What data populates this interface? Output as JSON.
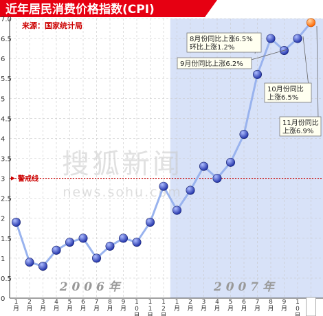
{
  "header": {
    "title": "近年居民消费价格指数(CPI)",
    "source": "来源：国家统计局",
    "title_bg": "#e60012",
    "title_color": "#ffffff",
    "source_color": "#cc0000"
  },
  "watermark": {
    "brand": "搜狐新闻",
    "url": "news.sohu.com"
  },
  "chart_data": {
    "type": "line",
    "xlabel": "",
    "ylabel": "",
    "ylim": [
      0,
      7
    ],
    "yticks": [
      "0",
      "0.5",
      "1",
      "1.5",
      "2",
      "2.5",
      "3",
      "3.5",
      "4",
      "4.5",
      "5",
      "5.5",
      "6",
      "6.5",
      "7.0"
    ],
    "year_labels": [
      {
        "text": "2 0 0 6 年",
        "start_index": 0,
        "end_index": 11
      },
      {
        "text": "2 0 0 7 年",
        "start_index": 12,
        "end_index": 22
      }
    ],
    "categories": [
      "1月",
      "2月",
      "3月",
      "4月",
      "5月",
      "6月",
      "7月",
      "8月",
      "9月",
      "10月",
      "11月",
      "12月",
      "1月",
      "2月",
      "3月",
      "4月",
      "5月",
      "6月",
      "7月",
      "8月",
      "9月",
      "10月",
      "11月"
    ],
    "series": [
      {
        "values": [
          1.9,
          0.9,
          0.8,
          1.2,
          1.4,
          1.5,
          1.0,
          1.3,
          1.5,
          1.4,
          1.9,
          2.8,
          2.2,
          2.7,
          3.3,
          3.0,
          3.4,
          4.1,
          5.6,
          6.5,
          6.2,
          6.5,
          6.9
        ],
        "color": "#99b3ee",
        "marker_color": "#2233aa",
        "highlight_last_color": "#ff6600"
      }
    ],
    "reference_line": {
      "label": "警戒线",
      "value": 3,
      "color": "#cc0000"
    },
    "shaded_range": {
      "start_index": 12,
      "end_index": 22,
      "color": "#d8e2f8"
    },
    "annotations": [
      {
        "lines": [
          "8月份同比上涨6.5%",
          "环比上涨1.2%"
        ],
        "point_index": 19
      },
      {
        "lines": [
          "9月份同比上涨6.2%"
        ],
        "point_index": 20
      },
      {
        "lines": [
          "10月份同比",
          "上涨6.5%"
        ],
        "point_index": 21
      },
      {
        "lines": [
          "11月份同比",
          "上涨6.9%"
        ],
        "point_index": 22
      }
    ],
    "grid": true
  }
}
